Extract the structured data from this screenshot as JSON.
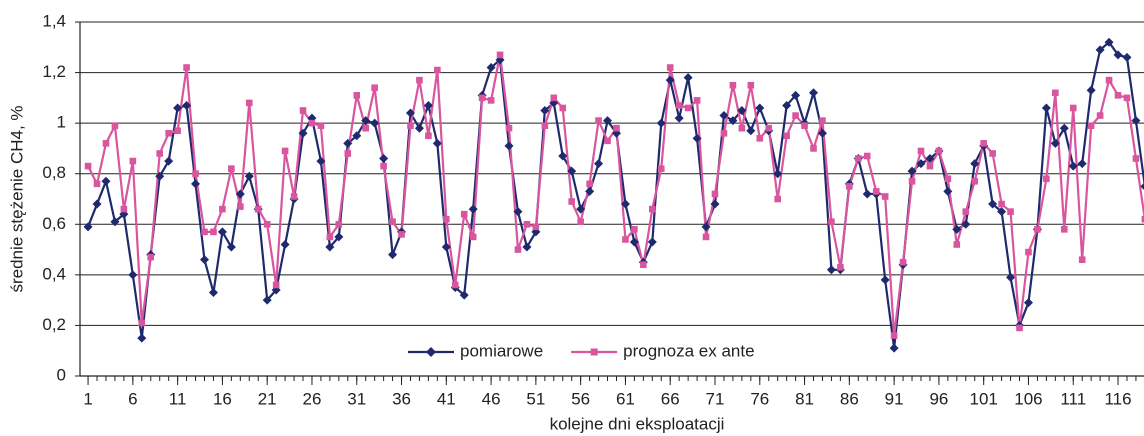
{
  "chart_data": {
    "type": "line",
    "x_label": "kolejne dni eksploatacji",
    "y_label": "średnie stężenie CH4, %",
    "x": [
      1,
      2,
      3,
      4,
      5,
      6,
      7,
      8,
      9,
      10,
      11,
      12,
      13,
      14,
      15,
      16,
      17,
      18,
      19,
      20,
      21,
      22,
      23,
      24,
      25,
      26,
      27,
      28,
      29,
      30,
      31,
      32,
      33,
      34,
      35,
      36,
      37,
      38,
      39,
      40,
      41,
      42,
      43,
      44,
      45,
      46,
      47,
      48,
      49,
      50,
      51,
      52,
      53,
      54,
      55,
      56,
      57,
      58,
      59,
      60,
      61,
      62,
      63,
      64,
      65,
      66,
      67,
      68,
      69,
      70,
      71,
      72,
      73,
      74,
      75,
      76,
      77,
      78,
      79,
      80,
      81,
      82,
      83,
      84,
      85,
      86,
      87,
      88,
      89,
      90,
      91,
      92,
      93,
      94,
      95,
      96,
      97,
      98,
      99,
      100,
      101,
      102,
      103,
      104,
      105,
      106,
      107,
      108,
      109,
      110,
      111,
      112,
      113,
      114,
      115,
      116,
      117,
      118,
      119
    ],
    "series": [
      {
        "name": "pomiarowe",
        "color": "#1f2a6e",
        "marker": "diamond",
        "values": [
          0.59,
          0.68,
          0.77,
          0.61,
          0.64,
          0.4,
          0.15,
          0.48,
          0.79,
          0.85,
          1.06,
          1.07,
          0.76,
          0.46,
          0.33,
          0.57,
          0.51,
          0.72,
          0.79,
          0.66,
          0.3,
          0.34,
          0.52,
          0.7,
          0.96,
          1.02,
          0.85,
          0.51,
          0.55,
          0.92,
          0.95,
          1.01,
          1.0,
          0.86,
          0.48,
          0.57,
          1.04,
          0.98,
          1.07,
          0.92,
          0.51,
          0.35,
          0.32,
          0.66,
          1.11,
          1.22,
          1.25,
          0.91,
          0.65,
          0.51,
          0.57,
          1.05,
          1.08,
          0.87,
          0.81,
          0.66,
          0.73,
          0.84,
          1.01,
          0.96,
          0.68,
          0.53,
          0.45,
          0.53,
          1.0,
          1.17,
          1.02,
          1.18,
          0.94,
          0.59,
          0.68,
          1.03,
          1.01,
          1.05,
          0.97,
          1.06,
          0.97,
          0.8,
          1.07,
          1.11,
          1.0,
          1.12,
          0.96,
          0.42,
          0.42,
          0.76,
          0.86,
          0.72,
          0.72,
          0.38,
          0.11,
          0.44,
          0.81,
          0.84,
          0.86,
          0.89,
          0.73,
          0.58,
          0.6,
          0.84,
          0.91,
          0.68,
          0.65,
          0.39,
          0.2,
          0.29,
          0.58,
          1.06,
          0.92,
          0.98,
          0.83,
          0.84,
          1.13,
          1.29,
          1.32,
          1.27,
          1.26,
          1.01,
          0.75
        ]
      },
      {
        "name": "prognoza ex ante",
        "color": "#d9559e",
        "marker": "square",
        "values": [
          0.83,
          0.76,
          0.92,
          0.99,
          0.66,
          0.85,
          0.21,
          0.47,
          0.88,
          0.96,
          0.97,
          1.22,
          0.8,
          0.57,
          0.57,
          0.66,
          0.82,
          0.67,
          1.08,
          0.66,
          0.6,
          0.36,
          0.89,
          0.71,
          1.05,
          1.0,
          0.99,
          0.55,
          0.6,
          0.88,
          1.11,
          0.98,
          1.14,
          0.83,
          0.61,
          0.56,
          0.99,
          1.17,
          0.95,
          1.21,
          0.62,
          0.36,
          0.64,
          0.55,
          1.1,
          1.09,
          1.27,
          0.98,
          0.5,
          0.6,
          0.59,
          0.99,
          1.1,
          1.06,
          0.69,
          0.61,
          0.76,
          1.01,
          0.93,
          0.98,
          0.54,
          0.58,
          0.44,
          0.66,
          0.82,
          1.22,
          1.07,
          1.06,
          1.09,
          0.55,
          0.72,
          0.96,
          1.15,
          0.98,
          1.15,
          0.94,
          0.98,
          0.7,
          0.95,
          1.03,
          0.99,
          0.9,
          1.01,
          0.61,
          0.43,
          0.75,
          0.86,
          0.87,
          0.73,
          0.71,
          0.16,
          0.45,
          0.77,
          0.89,
          0.83,
          0.89,
          0.78,
          0.52,
          0.65,
          0.77,
          0.92,
          0.88,
          0.68,
          0.65,
          0.19,
          0.49,
          0.58,
          0.78,
          1.12,
          0.58,
          1.06,
          0.46,
          0.99,
          1.03,
          1.17,
          1.11,
          1.1,
          0.86,
          0.62
        ]
      }
    ],
    "xlim": [
      0.1,
      118.9
    ],
    "xticks": [
      1,
      6,
      11,
      16,
      21,
      26,
      31,
      36,
      41,
      46,
      51,
      56,
      61,
      66,
      71,
      76,
      81,
      86,
      91,
      96,
      101,
      106,
      111,
      116
    ],
    "ylim": [
      0,
      1.4
    ],
    "yticks": [
      0,
      {
        "value": 0.2,
        "label": "0,2"
      },
      {
        "value": 0.4,
        "label": "0,4"
      },
      {
        "value": 0.6,
        "label": "0,6"
      },
      {
        "value": 0.8,
        "label": "0,8"
      },
      1,
      {
        "value": 1.2,
        "label": "1,2"
      },
      {
        "value": 1.4,
        "label": "1,4"
      }
    ],
    "grid": true,
    "legend": "bottom"
  }
}
